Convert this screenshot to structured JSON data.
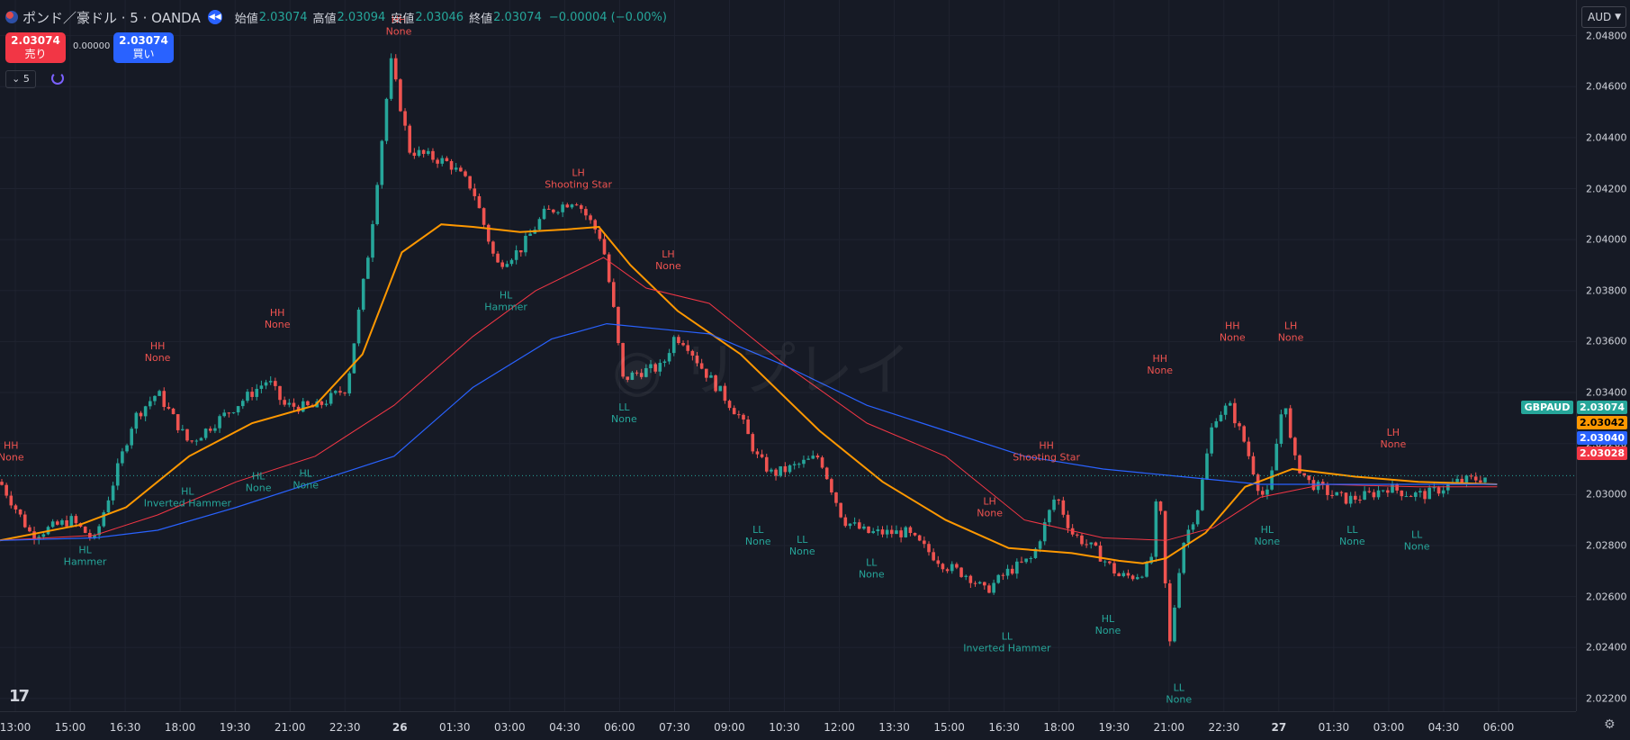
{
  "header": {
    "title": "ポンド／豪ドル · 5 · OANDA",
    "open_label": "始値",
    "open_value": "2.03074",
    "high_label": "高値",
    "high_value": "2.03094",
    "low_label": "安値",
    "low_value": "2.03046",
    "close_label": "終値",
    "close_value": "2.03074",
    "change": "−0.00004 (−0.00%)"
  },
  "trade": {
    "sell_price": "2.03074",
    "sell_label": "売り",
    "buy_price": "2.03074",
    "buy_label": "買い",
    "spread": "0.00000"
  },
  "interval": "5",
  "currency": "AUD",
  "watermark": "リプレイ",
  "logo": "17",
  "price_tags": {
    "symbol": "GBPAUD",
    "last": "2.03074",
    "ma1": "2.03042",
    "ma2": "2.03040",
    "ma3": "2.03028"
  },
  "colors": {
    "up": "#26a69a",
    "down": "#ef5350",
    "ma_orange": "#ff9800",
    "ma_blue": "#2962ff",
    "ma_red": "#f23645",
    "background": "#161a25"
  },
  "chart_data": {
    "type": "candlestick",
    "symbol": "GBPAUD",
    "ylim": [
      2.0215,
      2.0494
    ],
    "price_ticks": [
      "2.04800",
      "2.04600",
      "2.04400",
      "2.04200",
      "2.04000",
      "2.03800",
      "2.03600",
      "2.03400",
      "2.03200",
      "2.03000",
      "2.02800",
      "2.02600",
      "2.02400",
      "2.02200"
    ],
    "time_ticks": [
      "13:00",
      "15:00",
      "16:30",
      "18:00",
      "19:30",
      "21:00",
      "22:30",
      "26",
      "01:30",
      "03:00",
      "04:30",
      "06:00",
      "07:30",
      "09:00",
      "10:30",
      "12:00",
      "13:30",
      "15:00",
      "16:30",
      "18:00",
      "19:30",
      "21:00",
      "22:30",
      "27",
      "01:30",
      "03:00",
      "04:30",
      "06:00"
    ],
    "price_path": [
      [
        0,
        2.0305
      ],
      [
        0.02,
        2.0284
      ],
      [
        0.045,
        2.029
      ],
      [
        0.06,
        2.0282
      ],
      [
        0.085,
        2.033
      ],
      [
        0.1,
        2.034
      ],
      [
        0.12,
        2.032
      ],
      [
        0.15,
        2.0335
      ],
      [
        0.17,
        2.0345
      ],
      [
        0.18,
        2.0335
      ],
      [
        0.2,
        2.0334
      ],
      [
        0.22,
        2.0342
      ],
      [
        0.235,
        2.04
      ],
      [
        0.248,
        2.047
      ],
      [
        0.26,
        2.0435
      ],
      [
        0.285,
        2.043
      ],
      [
        0.3,
        2.042
      ],
      [
        0.315,
        2.039
      ],
      [
        0.33,
        2.0396
      ],
      [
        0.345,
        2.041
      ],
      [
        0.365,
        2.0416
      ],
      [
        0.382,
        2.04
      ],
      [
        0.39,
        2.037
      ],
      [
        0.395,
        2.0345
      ],
      [
        0.405,
        2.0348
      ],
      [
        0.42,
        2.035
      ],
      [
        0.428,
        2.0362
      ],
      [
        0.435,
        2.036
      ],
      [
        0.445,
        2.035
      ],
      [
        0.47,
        2.033
      ],
      [
        0.48,
        2.0315
      ],
      [
        0.49,
        2.0308
      ],
      [
        0.5,
        2.031
      ],
      [
        0.52,
        2.0315
      ],
      [
        0.535,
        2.029
      ],
      [
        0.55,
        2.0285
      ],
      [
        0.575,
        2.0285
      ],
      [
        0.6,
        2.0272
      ],
      [
        0.615,
        2.0268
      ],
      [
        0.625,
        2.0262
      ],
      [
        0.64,
        2.027
      ],
      [
        0.655,
        2.0275
      ],
      [
        0.67,
        2.03
      ],
      [
        0.68,
        2.0285
      ],
      [
        0.695,
        2.0278
      ],
      [
        0.71,
        2.0268
      ],
      [
        0.72,
        2.0268
      ],
      [
        0.73,
        2.0272
      ],
      [
        0.735,
        2.0305
      ],
      [
        0.742,
        2.024
      ],
      [
        0.75,
        2.028
      ],
      [
        0.76,
        2.0295
      ],
      [
        0.77,
        2.033
      ],
      [
        0.78,
        2.0335
      ],
      [
        0.79,
        2.032
      ],
      [
        0.8,
        2.03
      ],
      [
        0.805,
        2.03
      ],
      [
        0.815,
        2.034
      ],
      [
        0.82,
        2.0315
      ],
      [
        0.83,
        2.0305
      ],
      [
        0.845,
        2.03
      ],
      [
        0.855,
        2.0298
      ],
      [
        0.87,
        2.03
      ],
      [
        0.88,
        2.0303
      ],
      [
        0.895,
        2.03
      ],
      [
        0.905,
        2.03
      ],
      [
        0.925,
        2.0305
      ],
      [
        0.945,
        2.0307
      ]
    ],
    "series": [
      {
        "name": "",
        "points": [
          [
            0,
            2.0282
          ],
          [
            0.05,
            2.0288
          ],
          [
            0.08,
            2.0295
          ],
          [
            0.12,
            2.0315
          ],
          [
            0.16,
            2.0328
          ],
          [
            0.2,
            2.0335
          ],
          [
            0.23,
            2.0355
          ],
          [
            0.255,
            2.0395
          ],
          [
            0.28,
            2.0406
          ],
          [
            0.3,
            2.0405
          ],
          [
            0.33,
            2.0403
          ],
          [
            0.36,
            2.0404
          ],
          [
            0.38,
            2.0405
          ],
          [
            0.4,
            2.039
          ],
          [
            0.43,
            2.0372
          ],
          [
            0.47,
            2.0355
          ],
          [
            0.52,
            2.0325
          ],
          [
            0.56,
            2.0305
          ],
          [
            0.6,
            2.029
          ],
          [
            0.64,
            2.0279
          ],
          [
            0.68,
            2.0277
          ],
          [
            0.71,
            2.0274
          ],
          [
            0.725,
            2.0273
          ],
          [
            0.74,
            2.0275
          ],
          [
            0.765,
            2.0285
          ],
          [
            0.79,
            2.0303
          ],
          [
            0.82,
            2.031
          ],
          [
            0.86,
            2.0307
          ],
          [
            0.9,
            2.0305
          ],
          [
            0.95,
            2.0304
          ]
        ]
      },
      {
        "name": "",
        "points": [
          [
            0,
            2.0282
          ],
          [
            0.06,
            2.0284
          ],
          [
            0.1,
            2.0292
          ],
          [
            0.15,
            2.0305
          ],
          [
            0.2,
            2.0315
          ],
          [
            0.25,
            2.0335
          ],
          [
            0.3,
            2.0362
          ],
          [
            0.34,
            2.038
          ],
          [
            0.383,
            2.0393
          ],
          [
            0.41,
            2.0381
          ],
          [
            0.45,
            2.0375
          ],
          [
            0.5,
            2.035
          ],
          [
            0.55,
            2.0328
          ],
          [
            0.6,
            2.0315
          ],
          [
            0.65,
            2.029
          ],
          [
            0.7,
            2.0283
          ],
          [
            0.74,
            2.0282
          ],
          [
            0.77,
            2.0287
          ],
          [
            0.8,
            2.0299
          ],
          [
            0.84,
            2.0304
          ],
          [
            0.9,
            2.0303
          ],
          [
            0.95,
            2.0303
          ]
        ]
      },
      {
        "name": "",
        "points": [
          [
            0,
            2.0282
          ],
          [
            0.06,
            2.0283
          ],
          [
            0.1,
            2.0286
          ],
          [
            0.15,
            2.0295
          ],
          [
            0.2,
            2.0305
          ],
          [
            0.25,
            2.0315
          ],
          [
            0.3,
            2.0342
          ],
          [
            0.35,
            2.0361
          ],
          [
            0.385,
            2.0367
          ],
          [
            0.45,
            2.0363
          ],
          [
            0.5,
            2.035
          ],
          [
            0.55,
            2.0335
          ],
          [
            0.6,
            2.0325
          ],
          [
            0.65,
            2.0315
          ],
          [
            0.7,
            2.031
          ],
          [
            0.75,
            2.0307
          ],
          [
            0.8,
            2.0304
          ],
          [
            0.84,
            2.0304
          ],
          [
            0.9,
            2.0304
          ],
          [
            0.95,
            2.0304
          ]
        ]
      }
    ],
    "annotations": [
      {
        "line1": "HH",
        "line2": "None",
        "x": 0.007,
        "y": 2.0318,
        "color": "#ef5350"
      },
      {
        "line1": "HH",
        "line2": "None",
        "x": 0.1,
        "y": 2.0357,
        "color": "#ef5350"
      },
      {
        "line1": "HH",
        "line2": "None",
        "x": 0.176,
        "y": 2.037,
        "color": "#ef5350"
      },
      {
        "line1": "HH",
        "line2": "None",
        "x": 0.253,
        "y": 2.0485,
        "color": "#ef5350"
      },
      {
        "line1": "LH",
        "line2": "Shooting Star",
        "x": 0.367,
        "y": 2.0425,
        "color": "#ef5350"
      },
      {
        "line1": "LH",
        "line2": "None",
        "x": 0.424,
        "y": 2.0393,
        "color": "#ef5350"
      },
      {
        "line1": "LH",
        "line2": "None",
        "x": 0.628,
        "y": 2.0296,
        "color": "#ef5350"
      },
      {
        "line1": "HH",
        "line2": "Shooting Star",
        "x": 0.664,
        "y": 2.0318,
        "color": "#ef5350"
      },
      {
        "line1": "HH",
        "line2": "None",
        "x": 0.736,
        "y": 2.0352,
        "color": "#ef5350"
      },
      {
        "line1": "HH",
        "line2": "None",
        "x": 0.782,
        "y": 2.0365,
        "color": "#ef5350"
      },
      {
        "line1": "LH",
        "line2": "None",
        "x": 0.819,
        "y": 2.0365,
        "color": "#ef5350"
      },
      {
        "line1": "LH",
        "line2": "None",
        "x": 0.884,
        "y": 2.0323,
        "color": "#ef5350"
      },
      {
        "line1": "HL",
        "line2": "Hammer",
        "x": 0.054,
        "y": 2.0277,
        "color": "#26a69a"
      },
      {
        "line1": "HL",
        "line2": "Inverted Hammer",
        "x": 0.119,
        "y": 2.03,
        "color": "#26a69a"
      },
      {
        "line1": "HL",
        "line2": "None",
        "x": 0.164,
        "y": 2.0306,
        "color": "#26a69a"
      },
      {
        "line1": "HL",
        "line2": "None",
        "x": 0.194,
        "y": 2.0307,
        "color": "#26a69a"
      },
      {
        "line1": "HL",
        "line2": "Hammer",
        "x": 0.321,
        "y": 2.0377,
        "color": "#26a69a"
      },
      {
        "line1": "LL",
        "line2": "None",
        "x": 0.396,
        "y": 2.0333,
        "color": "#26a69a"
      },
      {
        "line1": "LL",
        "line2": "None",
        "x": 0.481,
        "y": 2.0285,
        "color": "#26a69a"
      },
      {
        "line1": "LL",
        "line2": "None",
        "x": 0.509,
        "y": 2.0281,
        "color": "#26a69a"
      },
      {
        "line1": "LL",
        "line2": "None",
        "x": 0.553,
        "y": 2.0272,
        "color": "#26a69a"
      },
      {
        "line1": "LL",
        "line2": "Inverted Hammer",
        "x": 0.639,
        "y": 2.0243,
        "color": "#26a69a"
      },
      {
        "line1": "HL",
        "line2": "None",
        "x": 0.703,
        "y": 2.025,
        "color": "#26a69a"
      },
      {
        "line1": "LL",
        "line2": "None",
        "x": 0.748,
        "y": 2.0223,
        "color": "#26a69a"
      },
      {
        "line1": "HL",
        "line2": "None",
        "x": 0.804,
        "y": 2.0285,
        "color": "#26a69a"
      },
      {
        "line1": "LL",
        "line2": "None",
        "x": 0.858,
        "y": 2.0285,
        "color": "#26a69a"
      },
      {
        "line1": "LL",
        "line2": "None",
        "x": 0.899,
        "y": 2.0283,
        "color": "#26a69a"
      }
    ]
  }
}
